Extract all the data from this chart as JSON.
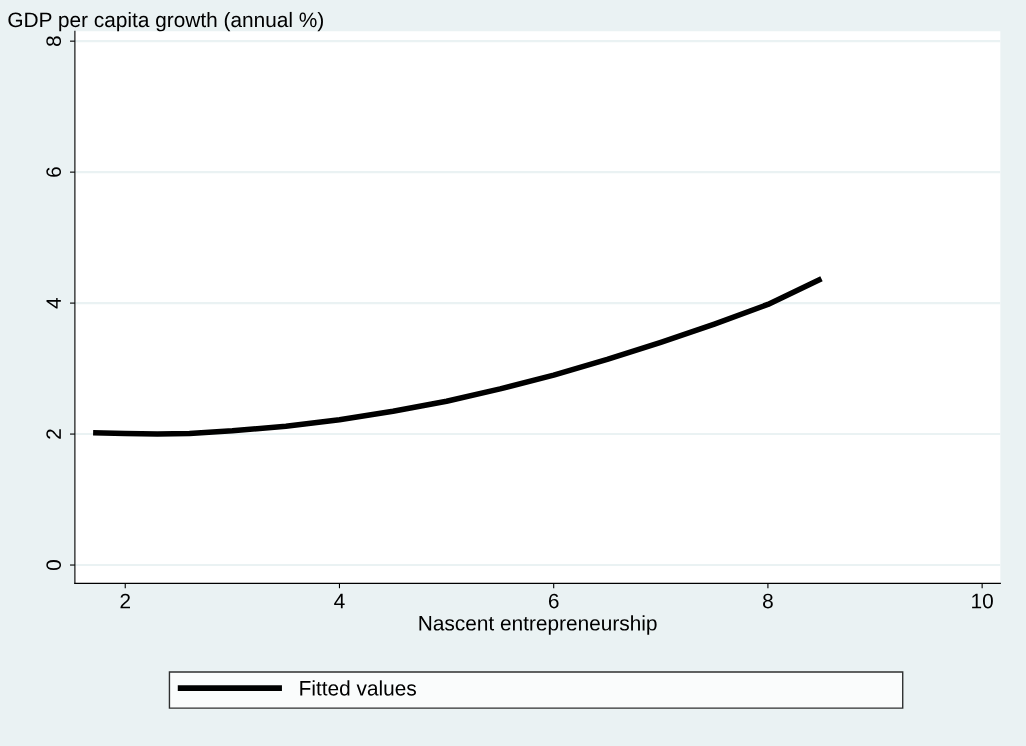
{
  "chart_data": {
    "type": "line",
    "xlabel": "Nascent entrepreneurship",
    "ylabel": "GDP per capita growth (annual %)",
    "xlim": [
      1.53,
      10.17
    ],
    "xticks": [
      2,
      4,
      6,
      8,
      10
    ],
    "ylim": [
      -0.28,
      8.15
    ],
    "yticks": [
      0,
      2,
      4,
      6,
      8
    ],
    "grid": "y",
    "legend": "bottom",
    "series": [
      {
        "name": "Fitted values",
        "color": "#000000",
        "x": [
          1.7,
          2.0,
          2.3,
          2.6,
          3.0,
          3.5,
          4.0,
          4.5,
          5.0,
          5.5,
          6.0,
          6.5,
          7.0,
          7.5,
          8.0,
          8.5
        ],
        "values": [
          2.02,
          2.01,
          2.0,
          2.01,
          2.05,
          2.12,
          2.22,
          2.35,
          2.5,
          2.69,
          2.9,
          3.14,
          3.4,
          3.68,
          3.98,
          4.37
        ]
      }
    ]
  }
}
